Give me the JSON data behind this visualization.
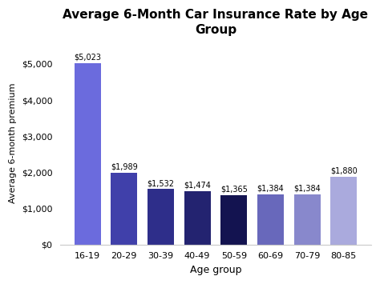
{
  "categories": [
    "16-19",
    "20-29",
    "30-39",
    "40-49",
    "50-59",
    "60-69",
    "70-79",
    "80-85"
  ],
  "values": [
    5023,
    1989,
    1532,
    1474,
    1365,
    1384,
    1384,
    1880
  ],
  "bar_colors": [
    "#6B6BDD",
    "#4040AA",
    "#2E2E8A",
    "#232370",
    "#131350",
    "#6868BB",
    "#8888CC",
    "#AAAADD"
  ],
  "labels": [
    "$5,023",
    "$1,989",
    "$1,532",
    "$1,474",
    "$1,365",
    "$1,384",
    "$1,384",
    "$1,880"
  ],
  "title": "Average 6-Month Car Insurance Rate by Age\nGroup",
  "xlabel": "Age group",
  "ylabel": "Average 6-month premium",
  "ylim": [
    0,
    5600
  ],
  "yticks": [
    0,
    1000,
    2000,
    3000,
    4000,
    5000
  ],
  "ytick_labels": [
    "$0",
    "$1,000",
    "$2,000",
    "$3,000",
    "$4,000",
    "$5,000"
  ],
  "background_color": "#ffffff",
  "title_fontsize": 11,
  "label_fontsize": 7,
  "axis_label_fontsize": 9,
  "tick_fontsize": 8
}
